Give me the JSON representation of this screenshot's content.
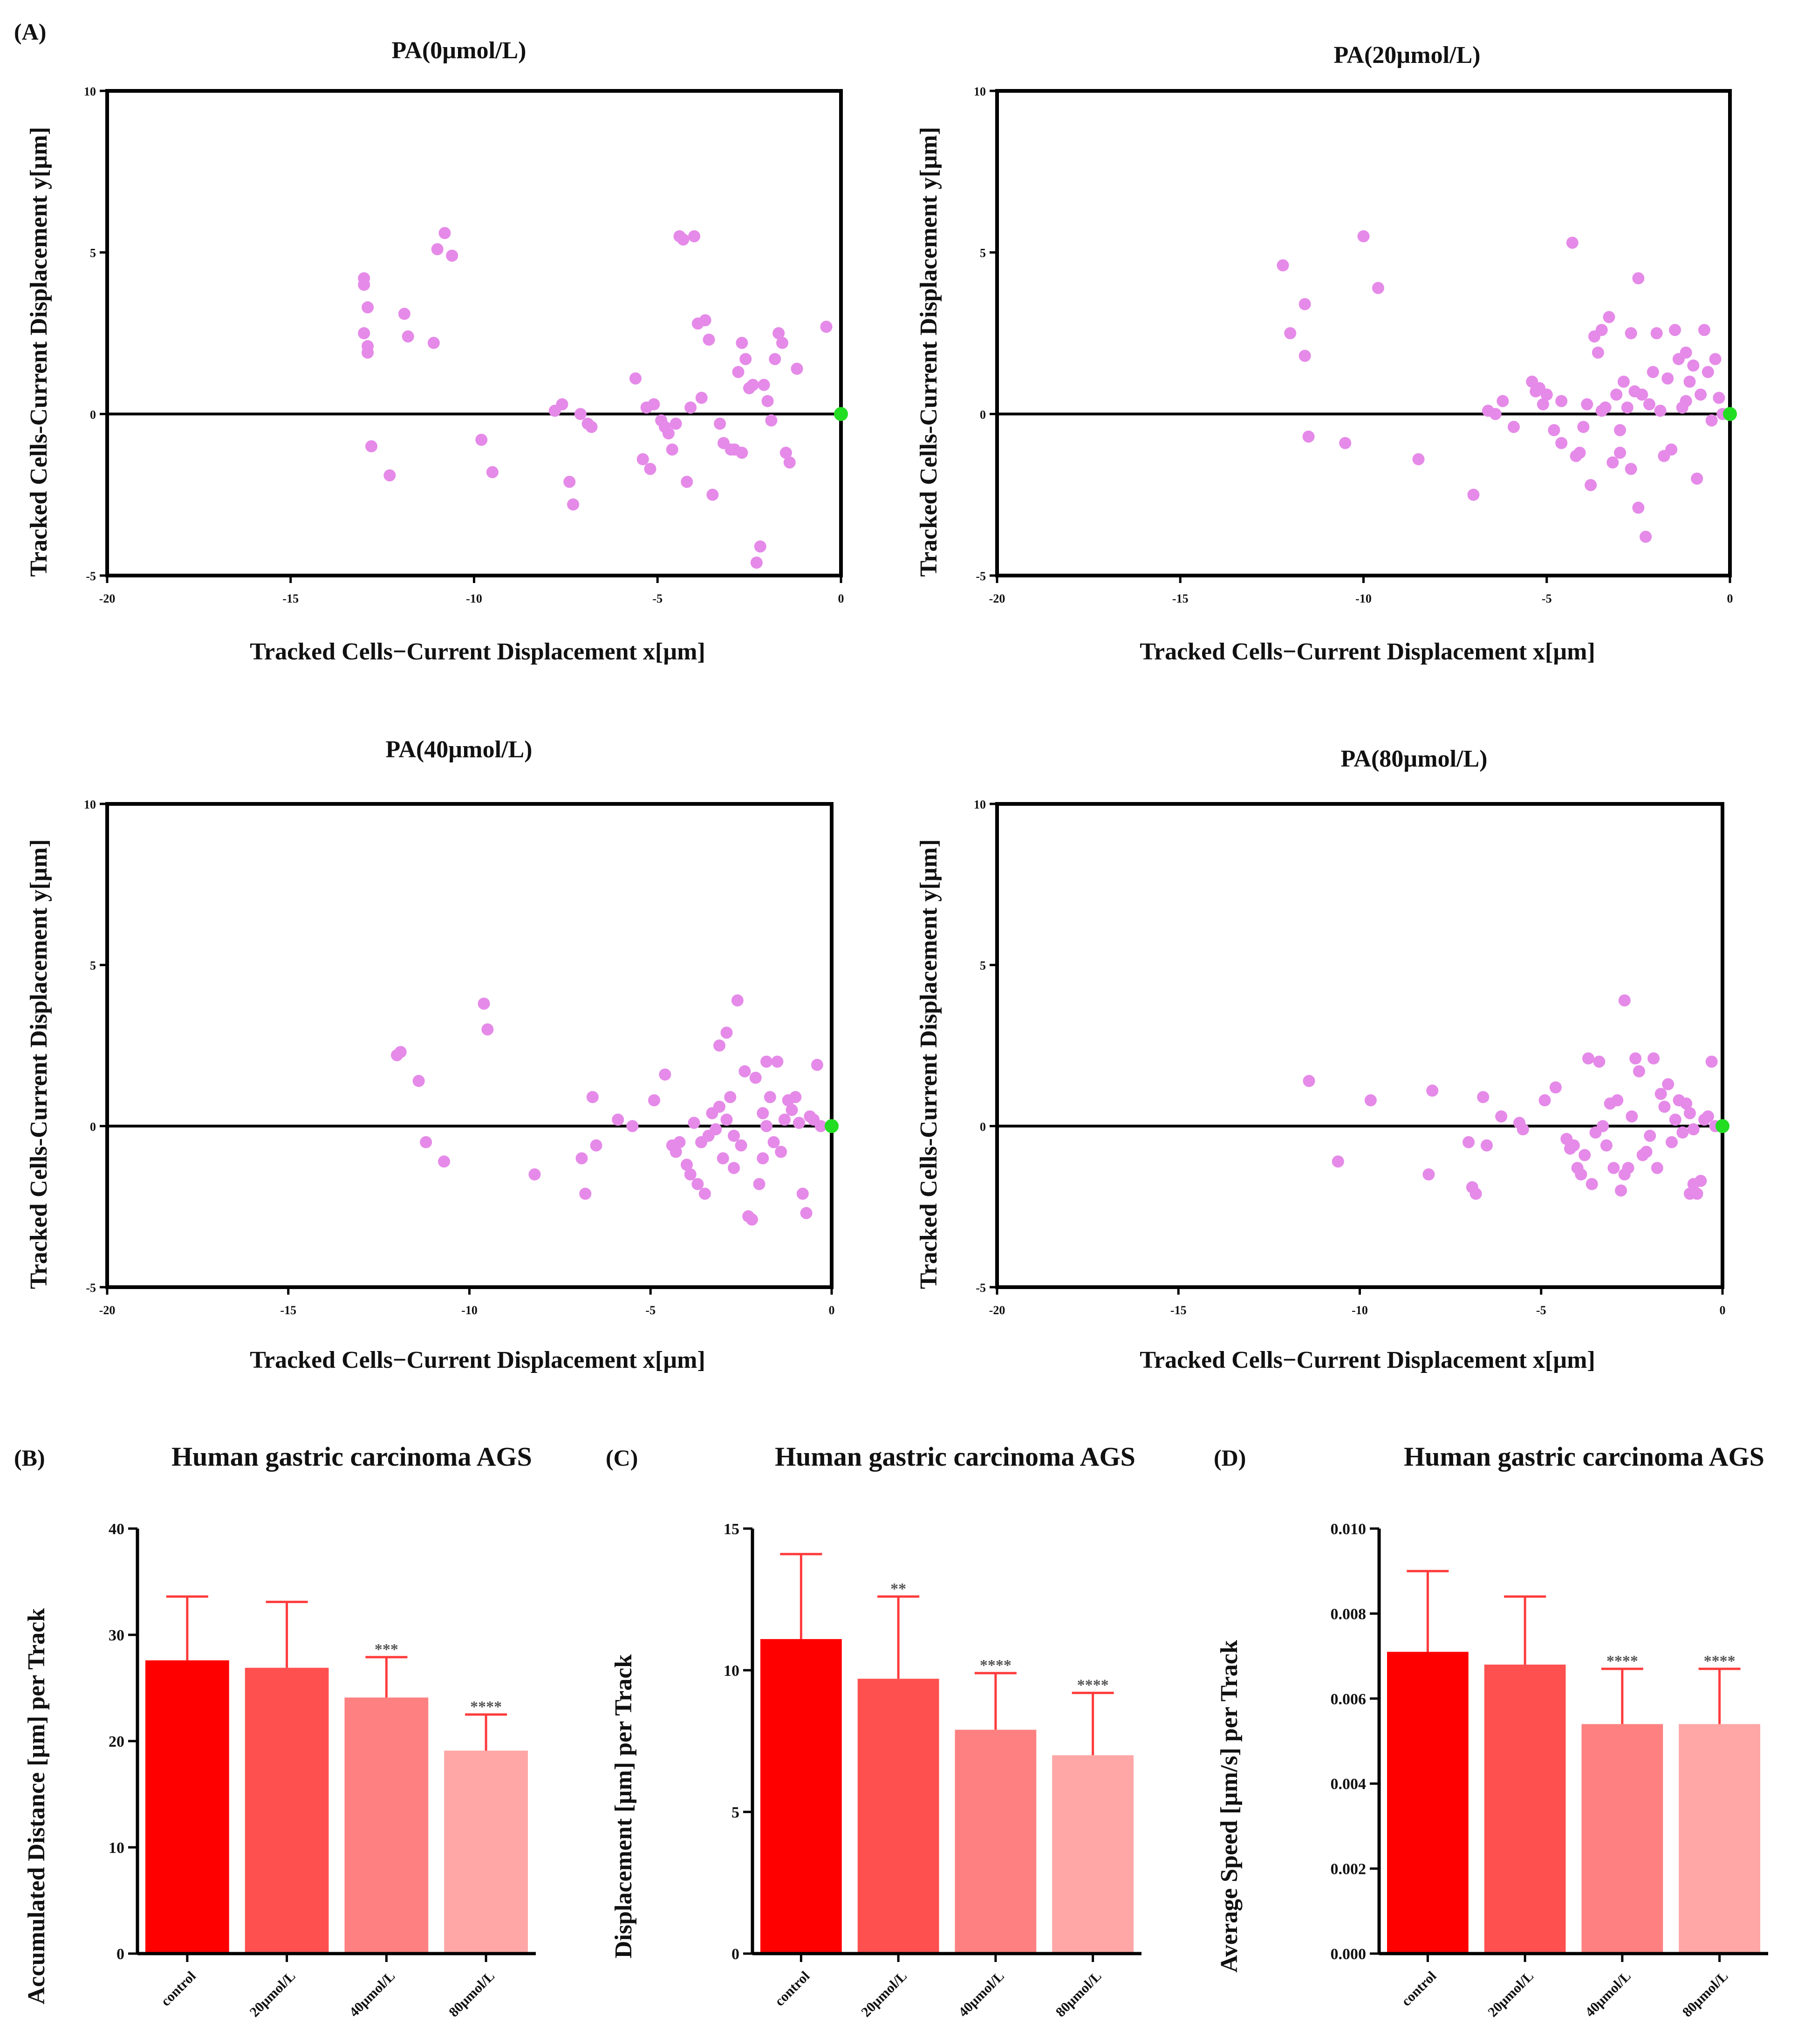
{
  "panel_labels": [
    "(A)",
    "(B)",
    "(C)",
    "(D)"
  ],
  "colors": {
    "scatter_point": "#e58ae8",
    "origin_point": "#22dd22",
    "bar_fills": [
      "#ff0000",
      "#ff5050",
      "#ff8080",
      "#ffa6a6"
    ],
    "error_bar": "#ff3b3b",
    "axis": "#000000"
  },
  "chart_data": [
    {
      "type": "scatter",
      "title": "PA(0µmol/L)",
      "xlabel": "Tracked Cells−Current Displacement x[µm]",
      "ylabel": "Tracked Cells-Current Displacement y[µm]",
      "xlim": [
        -20,
        0
      ],
      "ylim": [
        -5,
        10
      ],
      "xticks": [
        -20,
        -15,
        -10,
        -5,
        0
      ],
      "yticks": [
        -5,
        0,
        5,
        10
      ],
      "origin": [
        0,
        0
      ],
      "x": [
        -13.0,
        -13.0,
        -12.9,
        -12.9,
        -13.0,
        -12.9,
        -12.8,
        -12.3,
        -11.9,
        -11.8,
        -11.1,
        -11.0,
        -10.8,
        -10.6,
        -9.8,
        -9.5,
        -7.8,
        -7.6,
        -7.4,
        -7.3,
        -7.1,
        -6.9,
        -6.8,
        -5.6,
        -5.4,
        -5.3,
        -5.2,
        -5.1,
        -4.9,
        -4.8,
        -4.7,
        -4.6,
        -4.5,
        -4.4,
        -4.3,
        -4.2,
        -4.1,
        -4.0,
        -3.9,
        -3.8,
        -3.7,
        -3.6,
        -3.5,
        -3.3,
        -3.2,
        -3.0,
        -2.9,
        -2.8,
        -2.7,
        -2.6,
        -2.5,
        -2.4,
        -2.3,
        -2.2,
        -2.1,
        -2.0,
        -1.9,
        -1.8,
        -1.7,
        -1.6,
        -1.5,
        -1.4,
        -1.2,
        -0.4,
        -2.7,
        -2.5
      ],
      "y": [
        4.2,
        4.0,
        3.3,
        2.1,
        2.5,
        1.9,
        -1.0,
        -1.9,
        3.1,
        2.4,
        2.2,
        5.1,
        5.6,
        4.9,
        -0.8,
        -1.8,
        0.1,
        0.3,
        -2.1,
        -2.8,
        0.0,
        -0.3,
        -0.4,
        1.1,
        -1.4,
        0.2,
        -1.7,
        0.3,
        -0.2,
        -0.4,
        -0.6,
        -1.1,
        -0.3,
        5.5,
        5.4,
        -2.1,
        0.2,
        5.5,
        2.8,
        0.5,
        2.9,
        2.3,
        -2.5,
        -0.3,
        -0.9,
        -1.1,
        -1.1,
        1.3,
        2.2,
        1.7,
        0.8,
        0.9,
        -4.6,
        -4.1,
        0.9,
        0.4,
        -0.2,
        1.7,
        2.5,
        2.2,
        -1.2,
        -1.5,
        1.4,
        2.7,
        -1.2,
        0.8
      ]
    },
    {
      "type": "scatter",
      "title": "PA(20µmol/L)",
      "xlabel": "Tracked Cells−Current Displacement x[µm]",
      "ylabel": "Tracked Cells-Current Displacement y[µm]",
      "xlim": [
        -20,
        0
      ],
      "ylim": [
        -5,
        10
      ],
      "xticks": [
        -20,
        -15,
        -10,
        -5,
        0
      ],
      "yticks": [
        -5,
        0,
        5,
        10
      ],
      "origin": [
        0,
        0
      ],
      "x": [
        -12.2,
        -12.0,
        -11.6,
        -11.6,
        -11.5,
        -10.5,
        -10.0,
        -9.6,
        -8.5,
        -7.0,
        -6.6,
        -6.4,
        -6.2,
        -5.9,
        -5.4,
        -5.3,
        -5.2,
        -5.1,
        -5.0,
        -4.8,
        -4.6,
        -4.6,
        -4.3,
        -4.2,
        -4.1,
        -4.0,
        -3.9,
        -3.8,
        -3.6,
        -3.5,
        -3.5,
        -3.4,
        -3.3,
        -3.2,
        -3.1,
        -3.0,
        -3.0,
        -2.9,
        -2.8,
        -2.7,
        -2.6,
        -2.5,
        -2.4,
        -2.3,
        -2.2,
        -2.1,
        -2.0,
        -1.9,
        -1.8,
        -1.7,
        -1.6,
        -1.5,
        -1.4,
        -1.3,
        -1.2,
        -1.1,
        -1.0,
        -0.9,
        -0.8,
        -0.7,
        -0.6,
        -0.5,
        -0.4,
        -0.3,
        -0.2,
        -2.7,
        -2.5,
        -3.7,
        -1.2
      ],
      "y": [
        4.6,
        2.5,
        3.4,
        1.8,
        -0.7,
        -0.9,
        5.5,
        3.9,
        -1.4,
        -2.5,
        0.1,
        0.0,
        0.4,
        -0.4,
        1.0,
        0.7,
        0.8,
        0.3,
        0.6,
        -0.5,
        -0.9,
        0.4,
        5.3,
        -1.3,
        -1.2,
        -0.4,
        0.3,
        -2.2,
        1.9,
        2.6,
        0.1,
        0.2,
        3.0,
        -1.5,
        0.6,
        -0.5,
        -1.2,
        1.0,
        0.2,
        2.5,
        0.7,
        -2.9,
        0.6,
        -3.8,
        0.3,
        1.3,
        2.5,
        0.1,
        -1.3,
        1.1,
        -1.1,
        2.6,
        1.7,
        0.2,
        0.4,
        1.0,
        1.5,
        -2.0,
        0.6,
        2.6,
        1.3,
        -0.2,
        1.7,
        0.5,
        0.0,
        -1.7,
        4.2,
        2.4,
        1.9
      ]
    },
    {
      "type": "scatter",
      "title": "PA(40µmol/L)",
      "xlabel": "Tracked Cells−Current Displacement x[µm]",
      "ylabel": "Tracked Cells-Current Displacement y[µm]",
      "xlim": [
        -20,
        0
      ],
      "ylim": [
        -5,
        10
      ],
      "xticks": [
        -20,
        -15,
        -10,
        -5,
        0
      ],
      "yticks": [
        -5,
        0,
        5,
        10
      ],
      "origin": [
        0,
        0
      ],
      "x": [
        -12.0,
        -11.9,
        -11.4,
        -11.2,
        -10.7,
        -9.6,
        -9.5,
        -8.2,
        -6.9,
        -6.8,
        -6.6,
        -6.5,
        -5.9,
        -5.5,
        -4.9,
        -4.6,
        -4.4,
        -4.3,
        -4.2,
        -4.0,
        -3.9,
        -3.8,
        -3.7,
        -3.6,
        -3.5,
        -3.4,
        -3.3,
        -3.2,
        -3.1,
        -3.0,
        -2.9,
        -2.8,
        -2.7,
        -2.6,
        -2.5,
        -2.4,
        -2.3,
        -2.2,
        -2.1,
        -2.0,
        -1.9,
        -1.8,
        -1.7,
        -1.6,
        -1.5,
        -1.4,
        -1.3,
        -1.2,
        -1.1,
        -1.0,
        -0.9,
        -0.8,
        -0.7,
        -0.6,
        -0.5,
        -0.4,
        -0.3,
        -2.9,
        -2.7,
        -3.1,
        -1.8,
        -1.9
      ],
      "y": [
        2.2,
        2.3,
        1.4,
        -0.5,
        -1.1,
        3.8,
        3.0,
        -1.5,
        -1.0,
        -2.1,
        0.9,
        -0.6,
        0.2,
        0.0,
        0.8,
        1.6,
        -0.6,
        -0.8,
        -0.5,
        -1.2,
        -1.5,
        0.1,
        -1.8,
        -0.5,
        -2.1,
        -0.3,
        0.4,
        -0.1,
        0.6,
        -1.0,
        0.2,
        0.9,
        -1.3,
        3.9,
        -0.6,
        1.7,
        -2.8,
        -2.9,
        1.5,
        -1.8,
        0.4,
        2.0,
        0.9,
        -0.5,
        2.0,
        -0.8,
        0.2,
        0.8,
        0.5,
        0.9,
        0.1,
        -2.1,
        -2.7,
        0.3,
        0.2,
        1.9,
        0.0,
        2.9,
        -0.3,
        2.5,
        0.0,
        -1.0
      ]
    },
    {
      "type": "scatter",
      "title": "PA(80µmol/L)",
      "xlabel": "Tracked Cells−Current Displacement x[µm]",
      "ylabel": "Tracked Cells-Current Displacement y[µm]",
      "xlim": [
        -20,
        0
      ],
      "ylim": [
        -5,
        10
      ],
      "xticks": [
        -20,
        -15,
        -10,
        -5,
        0
      ],
      "yticks": [
        -5,
        0,
        5,
        10
      ],
      "origin": [
        0,
        0
      ],
      "x": [
        -11.4,
        -10.6,
        -9.7,
        -8.1,
        -8.0,
        -7.0,
        -6.9,
        -6.8,
        -6.6,
        -6.5,
        -6.1,
        -5.6,
        -5.5,
        -4.9,
        -4.6,
        -4.3,
        -4.2,
        -4.1,
        -4.0,
        -3.9,
        -3.8,
        -3.7,
        -3.6,
        -3.5,
        -3.4,
        -3.3,
        -3.2,
        -3.1,
        -3.0,
        -2.9,
        -2.8,
        -2.7,
        -2.6,
        -2.5,
        -2.4,
        -2.3,
        -2.2,
        -2.1,
        -2.0,
        -1.9,
        -1.8,
        -1.7,
        -1.6,
        -1.5,
        -1.4,
        -1.3,
        -1.2,
        -1.1,
        -1.0,
        -0.9,
        -0.8,
        -0.7,
        -0.6,
        -0.5,
        -0.4,
        -0.3,
        -0.2,
        -2.7,
        -0.9,
        -0.8
      ],
      "y": [
        1.4,
        -1.1,
        0.8,
        -1.5,
        1.1,
        -0.5,
        -1.9,
        -2.1,
        0.9,
        -0.6,
        0.3,
        0.1,
        -0.1,
        0.8,
        1.2,
        -0.4,
        -0.7,
        -0.6,
        -1.3,
        -1.5,
        -0.9,
        2.1,
        -1.8,
        -0.2,
        2.0,
        0.0,
        -0.6,
        0.7,
        -1.3,
        0.8,
        -2.0,
        3.9,
        -1.3,
        0.3,
        2.1,
        1.7,
        -0.9,
        -0.8,
        -0.3,
        2.1,
        -1.3,
        1.0,
        0.6,
        1.3,
        -0.5,
        0.2,
        0.8,
        -0.2,
        0.7,
        0.4,
        -0.1,
        -2.1,
        -1.7,
        0.2,
        0.3,
        2.0,
        0.0,
        -1.5,
        -2.1,
        -1.8
      ]
    },
    {
      "type": "bar",
      "title": "Human gastric carcinoma AGS",
      "ylabel": "Accumulated Distance [µm] per Track",
      "categories": [
        "control",
        "20µmol/L",
        "40µmol/L",
        "80µmol/L"
      ],
      "values": [
        27.6,
        26.9,
        24.1,
        19.1
      ],
      "error_upper": [
        33.6,
        33.1,
        27.9,
        22.5
      ],
      "significance": [
        "",
        "",
        "***",
        "****"
      ],
      "ylim": [
        0,
        40
      ],
      "yticks": [
        0,
        10,
        20,
        30,
        40
      ],
      "ytick_labels": [
        "0",
        "10",
        "20",
        "30",
        "40"
      ]
    },
    {
      "type": "bar",
      "title": "Human gastric carcinoma AGS",
      "ylabel": "Displacement [µm] per Track",
      "categories": [
        "control",
        "20µmol/L",
        "40µmol/L",
        "80µmol/L"
      ],
      "values": [
        11.1,
        9.7,
        7.9,
        7.0
      ],
      "error_upper": [
        14.1,
        12.6,
        9.9,
        9.2
      ],
      "significance": [
        "",
        "**",
        "****",
        "****"
      ],
      "ylim": [
        0,
        15
      ],
      "yticks": [
        0,
        5,
        10,
        15
      ],
      "ytick_labels": [
        "0",
        "5",
        "10",
        "15"
      ]
    },
    {
      "type": "bar",
      "title": "Human gastric carcinoma AGS",
      "ylabel": "Average Speed [µm/s] per Track",
      "categories": [
        "control",
        "20µmol/L",
        "40µmol/L",
        "80µmol/L"
      ],
      "values": [
        0.0071,
        0.0068,
        0.0054,
        0.0054
      ],
      "error_upper": [
        0.009,
        0.0084,
        0.0067,
        0.0067
      ],
      "significance": [
        "",
        "",
        "****",
        "****"
      ],
      "ylim": [
        0,
        0.01
      ],
      "yticks": [
        0,
        0.002,
        0.004,
        0.006,
        0.008,
        0.01
      ],
      "ytick_labels": [
        "0.000",
        "0.002",
        "0.004",
        "0.006",
        "0.008",
        "0.010"
      ]
    }
  ]
}
